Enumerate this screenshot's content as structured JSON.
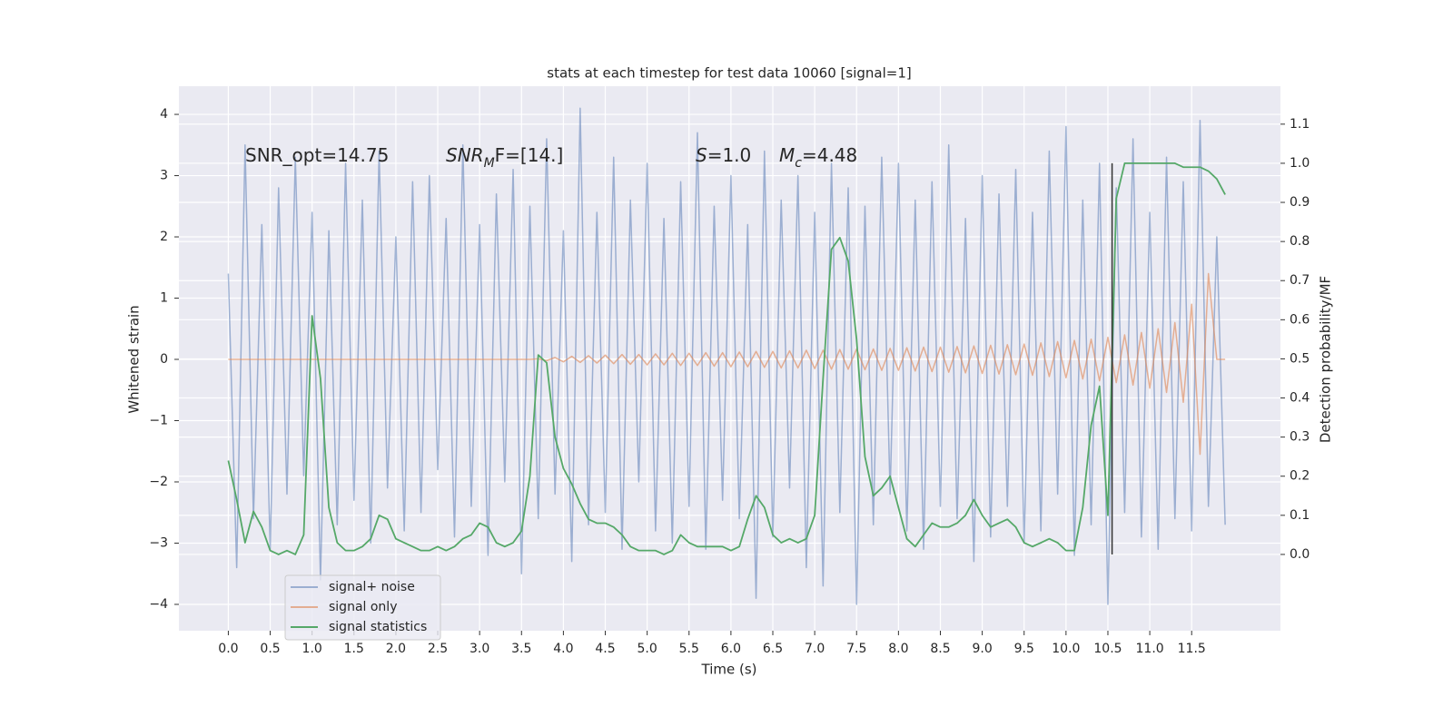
{
  "chart_data": {
    "type": "line",
    "title": "stats at each timestep for test data 10060 [signal=1]",
    "xlabel": "Time (s)",
    "ylabel": "Whitened strain",
    "y2label": "Detection probability/MF",
    "xlim": [
      -0.59,
      12.56
    ],
    "ylim": [
      -4.43,
      4.46
    ],
    "y2lim": [
      -0.195,
      1.197
    ],
    "xticks": [
      {
        "value": 0,
        "label": "0.0"
      },
      0.5,
      {
        "value": 1,
        "label": "1.0"
      },
      1.5,
      {
        "value": 2,
        "label": "2.0"
      },
      2.5,
      {
        "value": 3,
        "label": "3.0"
      },
      3.5,
      {
        "value": 4,
        "label": "4.0"
      },
      4.5,
      {
        "value": 5,
        "label": "5.0"
      },
      5.5,
      {
        "value": 6,
        "label": "6.0"
      },
      6.5,
      {
        "value": 7,
        "label": "7.0"
      },
      7.5,
      {
        "value": 8,
        "label": "8.0"
      },
      8.5,
      {
        "value": 9,
        "label": "9.0"
      },
      9.5,
      {
        "value": 10,
        "label": "10.0"
      },
      10.5,
      {
        "value": 11,
        "label": "11.0"
      },
      11.5
    ],
    "yticks": [
      {
        "value": -4,
        "label": "−4"
      },
      {
        "value": -3,
        "label": "−3"
      },
      {
        "value": -2,
        "label": "−2"
      },
      {
        "value": -1,
        "label": "−1"
      },
      0,
      1,
      2,
      3,
      4
    ],
    "y2ticks": [
      {
        "value": 0,
        "label": "0.0"
      },
      0.1,
      0.2,
      0.3,
      0.4,
      0.5,
      0.6,
      0.7,
      0.8,
      0.9,
      {
        "value": 1,
        "label": "1.0"
      },
      1.1
    ],
    "grid": true,
    "legend": "lower left",
    "x": [
      0.0,
      0.1,
      0.2,
      0.3,
      0.4,
      0.5,
      0.6,
      0.7,
      0.8,
      0.9,
      1.0,
      1.1,
      1.2,
      1.3,
      1.4,
      1.5,
      1.6,
      1.7,
      1.8,
      1.9,
      2.0,
      2.1,
      2.2,
      2.3,
      2.4,
      2.5,
      2.6,
      2.7,
      2.8,
      2.9,
      3.0,
      3.1,
      3.2,
      3.3,
      3.4,
      3.5,
      3.6,
      3.7,
      3.8,
      3.9,
      4.0,
      4.1,
      4.2,
      4.3,
      4.4,
      4.5,
      4.6,
      4.7,
      4.8,
      4.9,
      5.0,
      5.1,
      5.2,
      5.3,
      5.4,
      5.5,
      5.6,
      5.7,
      5.8,
      5.9,
      6.0,
      6.1,
      6.2,
      6.3,
      6.4,
      6.5,
      6.6,
      6.7,
      6.8,
      6.9,
      7.0,
      7.1,
      7.2,
      7.3,
      7.4,
      7.5,
      7.6,
      7.7,
      7.8,
      7.9,
      8.0,
      8.1,
      8.2,
      8.3,
      8.4,
      8.5,
      8.6,
      8.7,
      8.8,
      8.9,
      9.0,
      9.1,
      9.2,
      9.3,
      9.4,
      9.5,
      9.6,
      9.7,
      9.8,
      9.9,
      10.0,
      10.1,
      10.2,
      10.3,
      10.4,
      10.5,
      10.6,
      10.7,
      10.8,
      10.9,
      11.0,
      11.1,
      11.2,
      11.3,
      11.4,
      11.5,
      11.6,
      11.7,
      11.8,
      11.9
    ],
    "series": [
      {
        "name": "signal+ noise",
        "color": "#4c72b0",
        "values": [
          1.4,
          -3.4,
          3.5,
          -2.6,
          2.2,
          -3.1,
          2.8,
          -2.2,
          3.3,
          -1.9,
          2.4,
          -3.6,
          2.1,
          -2.7,
          3.2,
          -2.3,
          2.6,
          -3.0,
          3.4,
          -2.1,
          2.0,
          -2.8,
          2.9,
          -2.5,
          3.0,
          -1.8,
          2.3,
          -2.9,
          3.5,
          -2.4,
          2.2,
          -3.2,
          2.7,
          -2.0,
          3.1,
          -3.5,
          2.5,
          -2.6,
          3.6,
          -2.2,
          2.1,
          -3.3,
          4.1,
          -2.7,
          2.4,
          -2.5,
          3.3,
          -3.1,
          2.6,
          -2.0,
          3.2,
          -2.8,
          2.3,
          -3.0,
          2.9,
          -2.4,
          3.7,
          -3.1,
          2.5,
          -2.3,
          3.0,
          -2.6,
          2.2,
          -3.9,
          3.4,
          -2.9,
          2.6,
          -2.1,
          3.0,
          -3.4,
          2.4,
          -3.7,
          3.2,
          -2.5,
          2.8,
          -4.0,
          2.5,
          -2.7,
          3.3,
          -2.2,
          3.2,
          -2.8,
          2.6,
          -3.1,
          2.9,
          -2.4,
          3.5,
          -2.6,
          2.3,
          -3.3,
          3.0,
          -2.9,
          2.7,
          -2.4,
          3.1,
          -3.0,
          2.4,
          -2.8,
          3.4,
          -2.2,
          3.8,
          -3.2,
          2.6,
          -2.7,
          3.2,
          -4.0,
          2.8,
          -2.5,
          3.6,
          -2.9,
          2.4,
          -3.1,
          3.3,
          -2.6,
          2.9,
          -2.8,
          3.9,
          -2.4,
          2.0,
          -2.7
        ]
      },
      {
        "name": "signal only",
        "color": "#dd8452",
        "values": [
          0,
          0,
          0,
          0,
          0,
          0,
          0,
          0,
          0,
          0,
          0,
          0,
          0,
          0,
          0,
          0,
          0,
          0,
          0,
          0,
          0,
          0,
          0,
          0,
          0,
          0,
          0,
          0,
          0,
          0,
          0,
          0,
          0,
          0,
          0,
          0,
          0,
          0.01,
          -0.02,
          0.03,
          -0.04,
          0.05,
          -0.05,
          0.06,
          -0.06,
          0.07,
          -0.07,
          0.08,
          -0.08,
          0.08,
          -0.09,
          0.09,
          -0.09,
          0.1,
          -0.1,
          0.1,
          -0.1,
          0.11,
          -0.11,
          0.11,
          -0.12,
          0.12,
          -0.12,
          0.13,
          -0.13,
          0.13,
          -0.14,
          0.14,
          -0.14,
          0.15,
          -0.15,
          0.15,
          -0.16,
          0.16,
          -0.16,
          0.17,
          -0.17,
          0.17,
          -0.18,
          0.18,
          -0.18,
          0.19,
          -0.19,
          0.2,
          -0.2,
          0.2,
          -0.21,
          0.21,
          -0.22,
          0.22,
          -0.23,
          0.23,
          -0.24,
          0.24,
          -0.25,
          0.25,
          -0.26,
          0.27,
          -0.28,
          0.29,
          -0.3,
          0.31,
          -0.32,
          0.33,
          -0.35,
          0.36,
          -0.38,
          0.4,
          -0.42,
          0.44,
          -0.47,
          0.5,
          -0.54,
          0.6,
          -0.7,
          0.9,
          -1.55,
          1.4,
          0,
          0
        ]
      },
      {
        "name": "signal statistics",
        "color": "#55a868",
        "axis": "y2",
        "values": [
          0.24,
          0.14,
          0.03,
          0.11,
          0.07,
          0.01,
          0.0,
          0.01,
          0.0,
          0.05,
          0.61,
          0.45,
          0.12,
          0.03,
          0.01,
          0.01,
          0.02,
          0.04,
          0.1,
          0.09,
          0.04,
          0.03,
          0.02,
          0.01,
          0.01,
          0.02,
          0.01,
          0.02,
          0.04,
          0.05,
          0.08,
          0.07,
          0.03,
          0.02,
          0.03,
          0.06,
          0.2,
          0.51,
          0.49,
          0.3,
          0.22,
          0.18,
          0.13,
          0.09,
          0.08,
          0.08,
          0.07,
          0.05,
          0.02,
          0.01,
          0.01,
          0.01,
          0.0,
          0.01,
          0.05,
          0.03,
          0.02,
          0.02,
          0.02,
          0.02,
          0.01,
          0.02,
          0.09,
          0.15,
          0.12,
          0.05,
          0.03,
          0.04,
          0.03,
          0.04,
          0.1,
          0.45,
          0.78,
          0.81,
          0.75,
          0.55,
          0.25,
          0.15,
          0.17,
          0.2,
          0.12,
          0.04,
          0.02,
          0.05,
          0.08,
          0.07,
          0.07,
          0.08,
          0.1,
          0.14,
          0.1,
          0.07,
          0.08,
          0.09,
          0.07,
          0.03,
          0.02,
          0.03,
          0.04,
          0.03,
          0.01,
          0.01,
          0.12,
          0.33,
          0.43,
          0.1,
          0.91,
          1.0,
          1.0,
          1.0,
          1.0,
          1.0,
          1.0,
          1.0,
          0.99,
          0.99,
          0.99,
          0.98,
          0.96,
          0.92
        ]
      }
    ],
    "marker_line": {
      "x": 10.55,
      "y2range": [
        0,
        1.0
      ],
      "color": "#333333"
    },
    "annotations": [
      [
        {
          "text": "SNR_opt=14.75"
        }
      ],
      [
        {
          "text": "SNR",
          "italic": true
        },
        {
          "text": "M",
          "italic": true,
          "sub": true
        },
        {
          "text": "F=[14.]"
        }
      ],
      [
        {
          "text": "S",
          "italic": true
        },
        {
          "text": "=1.0"
        }
      ],
      [
        {
          "text": "M",
          "italic": true
        },
        {
          "text": "c",
          "italic": true,
          "sub": true
        },
        {
          "text": "=4.48"
        }
      ]
    ]
  }
}
